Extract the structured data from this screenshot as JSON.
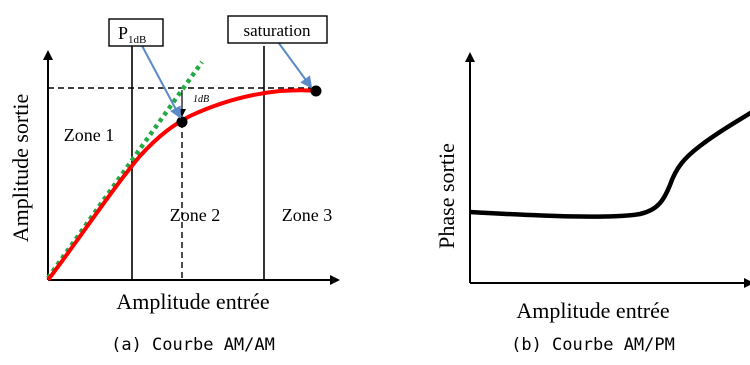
{
  "left_panel": {
    "y_label": "Amplitude sortie",
    "x_label": "Amplitude entrée",
    "zones": [
      "Zone 1",
      "Zone 2",
      "Zone 3"
    ],
    "p1db_main": "P",
    "p1db_sub": "1dB",
    "saturation_label": "saturation",
    "gap_label": "1dB",
    "caption": "(a) Courbe AM/AM",
    "colors": {
      "curve": "#ff0000",
      "linear_extrapolation": "#22aa44",
      "callout_arrow": "#5b8ac6"
    }
  },
  "right_panel": {
    "y_label": "Phase sortie",
    "x_label": "Amplitude entrée",
    "caption": "(b) Courbe AM/PM"
  }
}
